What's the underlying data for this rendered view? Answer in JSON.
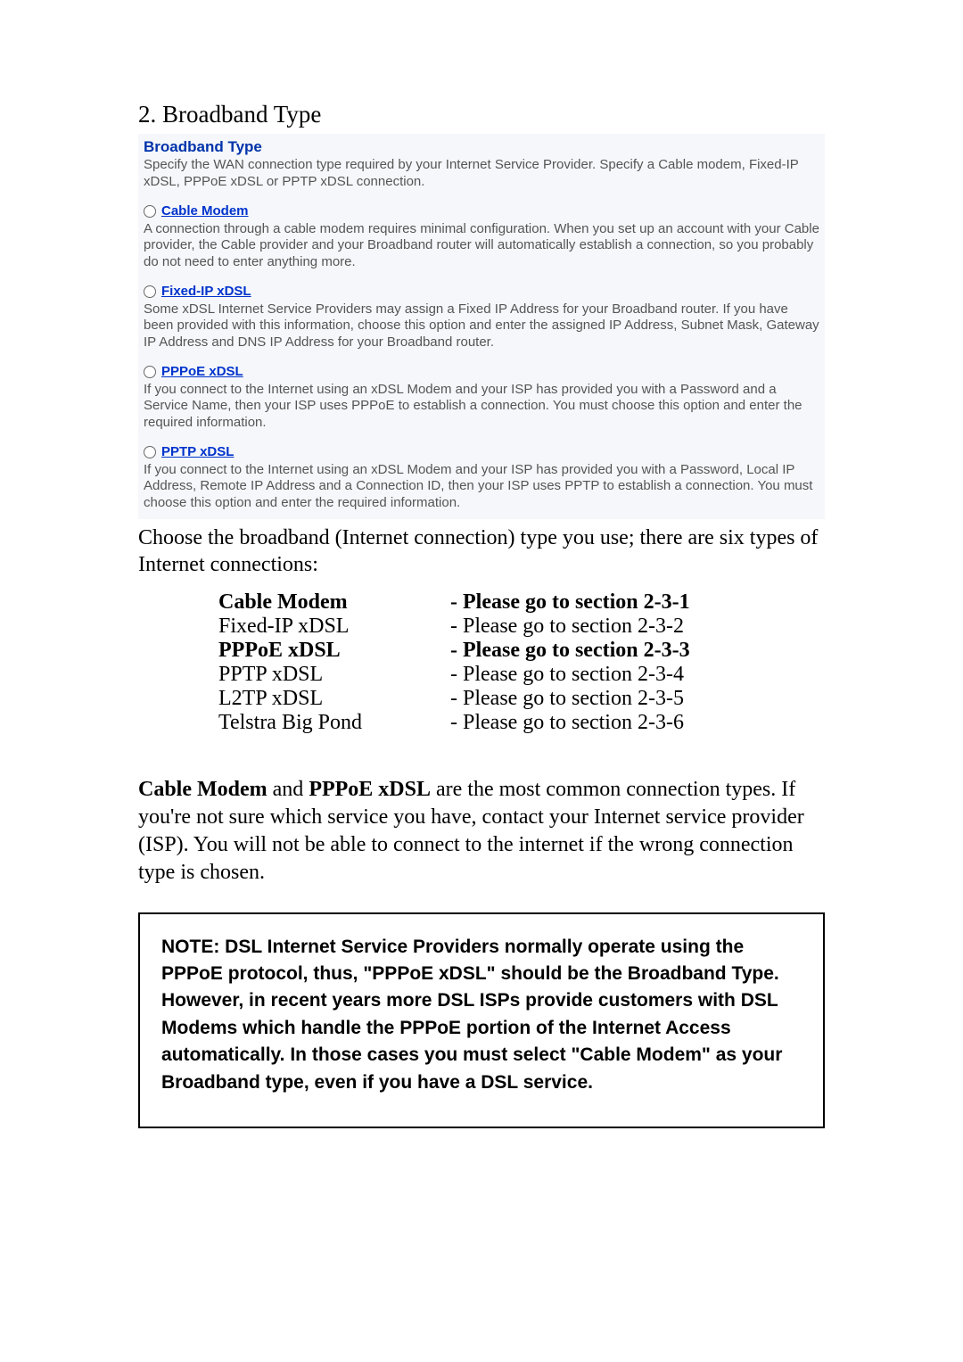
{
  "heading": "2. Broadband Type",
  "panel": {
    "title": "Broadband Type",
    "desc": "Specify the WAN connection type required by your Internet Service Provider. Specify a Cable modem, Fixed-IP xDSL, PPPoE xDSL or PPTP xDSL connection.",
    "options": [
      {
        "link": " Cable Modem",
        "desc": "A connection through a cable modem requires minimal configuration. When you set up an account with your Cable provider, the Cable provider and your Broadband router will automatically establish a connection, so you probably do not need to enter anything more."
      },
      {
        "link": " Fixed-IP xDSL",
        "desc": "Some xDSL Internet Service Providers may assign a Fixed IP Address for your Broadband router. If you have been provided with this information, choose this option and enter the assigned IP Address, Subnet Mask, Gateway IP Address and DNS IP Address for your Broadband router."
      },
      {
        "link": " PPPoE xDSL",
        "desc": "If you connect to the Internet using an xDSL Modem and your ISP has provided you with a Password and a Service Name, then your ISP uses PPPoE to establish a connection. You must choose this option and enter the required information."
      },
      {
        "link": " PPTP xDSL",
        "desc": "If you connect to the Internet using an xDSL Modem and your ISP has provided you with a Password, Local IP Address, Remote IP Address and a Connection ID, then your ISP uses PPTP to establish a connection. You must choose this option and enter the required information."
      }
    ]
  },
  "intro_text": "Choose the broadband (Internet connection) type you use; there are six types of Internet connections:",
  "conn_rows": [
    {
      "left": "Cable Modem",
      "right": "- Please go to section 2-3-1",
      "bold": true
    },
    {
      "left": "Fixed-IP xDSL",
      "right": "- Please go to section 2-3-2",
      "bold": false
    },
    {
      "left": "PPPoE xDSL",
      "right": "- Please go to section 2-3-3",
      "bold": true
    },
    {
      "left": "PPTP xDSL",
      "right": "- Please go to section 2-3-4",
      "bold": false
    },
    {
      "left": "L2TP xDSL",
      "right": "- Please go to section 2-3-5",
      "bold": false
    },
    {
      "left": "Telstra Big Pond",
      "right": "- Please go to section 2-3-6",
      "bold": false
    }
  ],
  "para2_bold1": "Cable Modem",
  "para2_mid": " and ",
  "para2_bold2": "PPPoE xDSL",
  "para2_rest": " are the most common connection types. If you're not sure which service you have, contact your Internet service provider (ISP). You will not be able to connect to the internet if the wrong connection type is chosen.",
  "note_text": "NOTE: DSL Internet Service Providers normally operate using the PPPoE protocol, thus, \"PPPoE xDSL\" should be the Broadband Type. However, in recent years more DSL ISPs provide customers with DSL Modems which handle the PPPoE portion of the Internet Access automatically. In those cases you must select \"Cable Modem\" as your Broadband type, even if you have a DSL service.",
  "colors": {
    "link_blue": "#0033cc",
    "title_blue": "#0033aa",
    "panel_bg": "#f5f7fa",
    "text_gray": "#555555"
  }
}
